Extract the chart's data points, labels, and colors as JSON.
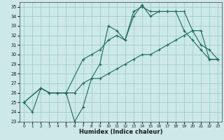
{
  "xlabel": "Humidex (Indice chaleur)",
  "bg_color": "#cce8e8",
  "grid_color": "#99ccbb",
  "line_color": "#1a6b5a",
  "xlim": [
    -0.5,
    23.5
  ],
  "ylim": [
    23,
    35.5
  ],
  "yticks": [
    23,
    24,
    25,
    26,
    27,
    28,
    29,
    30,
    31,
    32,
    33,
    34,
    35
  ],
  "xticks": [
    0,
    1,
    2,
    3,
    4,
    5,
    6,
    7,
    8,
    9,
    10,
    11,
    12,
    13,
    14,
    15,
    16,
    17,
    18,
    19,
    20,
    21,
    22,
    23
  ],
  "line1_x": [
    0,
    1,
    2,
    3,
    4,
    5,
    6,
    7,
    8,
    9,
    10,
    11,
    12,
    13,
    14,
    15,
    16,
    17,
    18,
    19,
    20,
    21,
    22,
    23
  ],
  "line1_y": [
    25.0,
    24.0,
    26.5,
    26.0,
    26.0,
    26.0,
    23.0,
    24.5,
    27.5,
    29.0,
    33.0,
    32.5,
    31.5,
    34.0,
    35.2,
    34.0,
    34.5,
    34.5,
    34.5,
    32.5,
    31.5,
    30.5,
    29.5,
    29.5
  ],
  "line2_x": [
    0,
    2,
    3,
    4,
    5,
    7,
    8,
    9,
    10,
    11,
    12,
    13,
    14,
    15,
    16,
    17,
    18,
    19,
    20,
    21,
    22,
    23
  ],
  "line2_y": [
    25.0,
    26.5,
    26.0,
    26.0,
    26.0,
    29.5,
    30.0,
    30.5,
    31.5,
    32.0,
    31.5,
    34.5,
    35.0,
    34.5,
    34.5,
    34.5,
    34.5,
    34.5,
    32.5,
    31.0,
    30.5,
    29.5
  ],
  "line3_x": [
    0,
    2,
    3,
    4,
    5,
    6,
    7,
    8,
    9,
    10,
    11,
    12,
    13,
    14,
    15,
    16,
    17,
    18,
    19,
    20,
    21,
    22,
    23
  ],
  "line3_y": [
    25.0,
    26.5,
    26.0,
    26.0,
    26.0,
    26.0,
    27.0,
    27.5,
    27.5,
    28.0,
    28.5,
    29.0,
    29.5,
    30.0,
    30.0,
    30.5,
    31.0,
    31.5,
    32.0,
    32.5,
    32.5,
    29.5,
    29.5
  ]
}
